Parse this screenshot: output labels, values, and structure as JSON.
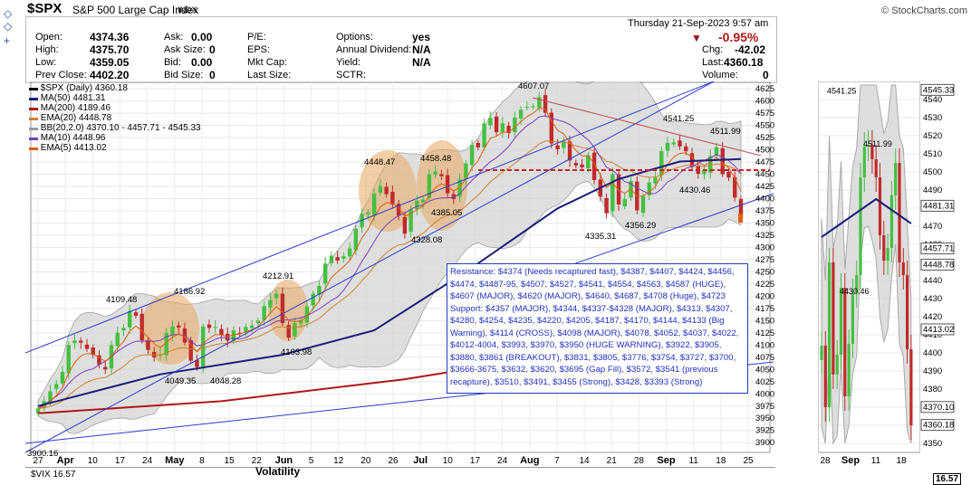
{
  "header": {
    "symbol": "$SPX",
    "name": "S&P 500 Large Cap Index",
    "exchange": "INDX",
    "logo": "© StockCharts.com",
    "datetime": "Thursday  21-Sep-2023  9:57 am",
    "change_pct": "-0.95%"
  },
  "quote": {
    "open_label": "Open:",
    "open": "4374.36",
    "high_label": "High:",
    "high": "4375.70",
    "low_label": "Low:",
    "low": "4359.05",
    "prev_label": "Prev Close:",
    "prev": "4402.20",
    "ask_label": "Ask:",
    "ask": "0.00",
    "asksize_label": "Ask Size:",
    "asksize": "0",
    "bid_label": "Bid:",
    "bid": "0.00",
    "bidsize_label": "Bid Size:",
    "bidsize": "0",
    "pe_label": "P/E:",
    "eps_label": "EPS:",
    "mktcap_label": "Mkt Cap:",
    "lastsize_label": "Last Size:",
    "options_label": "Options:",
    "options": "yes",
    "div_label": "Annual Dividend:",
    "div": "N/A",
    "yield_label": "Yield:",
    "yield": "N/A",
    "sctr_label": "SCTR:",
    "chg_label": "Chg:",
    "chg": "-42.02",
    "last_label": "Last:",
    "last": "4360.18",
    "volume_label": "Volume:",
    "volume": "0"
  },
  "legend": [
    {
      "text": "$SPX (Daily) 4360.18",
      "color": "#000000"
    },
    {
      "text": "MA(50) 4481.31",
      "color": "#1a1f7a"
    },
    {
      "text": "MA(200) 4189.46",
      "color": "#b01818"
    },
    {
      "text": "EMA(20) 4448.78",
      "color": "#d08030"
    },
    {
      "text": "BB(20,2.0) 4370.10 - 4457.71 - 4545.33",
      "color": "#888888"
    },
    {
      "text": "MA(10) 4448.96",
      "color": "#7a3fc0"
    },
    {
      "text": "EMA(5) 4413.02",
      "color": "#e06010"
    }
  ],
  "levels_text": "Resistance: $4374 (Needs recaptured fast), $4387, $4407, $4424, $4456, $4474, $4487-95, $4507, $4527, $4541, $4554, $4563, $4587 (HUGE), $4607 (MAJOR), $4620 (MAJOR), $4640, $4687, $4708 (Huge), $4723 Support: $4357 (MAJOR), $4344, $4337-$4328 (MAJOR), $4313, $4307, $4280, $4254, $4235, $4220, $4205, $4187, $4170, $4144, $4133 (Big Warning), $4114 (CROSS), $4098 (MAJOR), $4078, $4052, $4037, $4022, $4012-4004, $3993, $3970, $3950 (HUGE WARNING), $3922, $3905, $3880, $3861 (BREAKOUT), $3831, $3805, $3776, $3754, $3727, $3700, $3666-3675, $3632, $3620, $3695 (Gap Fill), $3572, $3541 (previous recapture), $3510, $3491, $3455 (Strong), $3428, $3393 (Strong)",
  "bottom": {
    "vix_label": "$VIX 16.57",
    "volatility_label": "Volatility",
    "side_value": "16.57"
  },
  "chart_data": [
    {
      "type": "candlestick",
      "title": "$SPX (Daily) 4360.18",
      "ylim": [
        3880,
        4640
      ],
      "y_ticks": [
        3900,
        3925,
        3950,
        3975,
        4000,
        4025,
        4050,
        4075,
        4100,
        4125,
        4150,
        4175,
        4200,
        4225,
        4250,
        4275,
        4300,
        4325,
        4350,
        4375,
        4400,
        4425,
        4450,
        4475,
        4500,
        4525,
        4550,
        4575,
        4600,
        4625
      ],
      "x_tick_labels": [
        "27",
        "Apr",
        "10",
        "17",
        "24",
        "May",
        "8",
        "15",
        "22",
        "Jun",
        "5",
        "12",
        "20",
        "26",
        "Jul",
        "10",
        "17",
        "24",
        "Aug",
        "7",
        "14",
        "21",
        "28",
        "Sep",
        "11",
        "18",
        "25"
      ],
      "x_tick_bold": [
        "Apr",
        "May",
        "Jun",
        "Jul",
        "Aug",
        "Sep"
      ],
      "annotations": [
        {
          "text": "3900.16",
          "value": 3900.16
        },
        {
          "text": "4109.48",
          "value": 4109.48
        },
        {
          "text": "4186.92",
          "value": 4186.92
        },
        {
          "text": "4049.35",
          "value": 4049.35
        },
        {
          "text": "4048.28",
          "value": 4048.28
        },
        {
          "text": "4212.91",
          "value": 4212.91
        },
        {
          "text": "4103.98",
          "value": 4103.98
        },
        {
          "text": "4448.47",
          "value": 4448.47
        },
        {
          "text": "4458.48",
          "value": 4458.48
        },
        {
          "text": "4328.08",
          "value": 4328.08
        },
        {
          "text": "4385.05",
          "value": 4385.05
        },
        {
          "text": "4607.07",
          "value": 4607.07
        },
        {
          "text": "4541.25",
          "value": 4541.25
        },
        {
          "text": "4511.99",
          "value": 4511.99
        },
        {
          "text": "4430.46",
          "value": 4430.46
        },
        {
          "text": "4356.29",
          "value": 4356.29
        },
        {
          "text": "4335.31",
          "value": 4335.31
        }
      ],
      "close": [
        3970,
        3985,
        4005,
        4020,
        4045,
        4100,
        4109,
        4105,
        4092,
        4080,
        4060,
        4050,
        4100,
        4125,
        4135,
        4170,
        4160,
        4110,
        4090,
        4075,
        4080,
        4125,
        4138,
        4136,
        4105,
        4068,
        4055,
        4138,
        4135,
        4137,
        4120,
        4109,
        4130,
        4124,
        4137,
        4140,
        4150,
        4180,
        4192,
        4205,
        4145,
        4115,
        4145,
        4151,
        4179,
        4205,
        4221,
        4267,
        4283,
        4273,
        4282,
        4298,
        4338,
        4369,
        4372,
        4410,
        4426,
        4409,
        4388,
        4365,
        4328,
        4378,
        4396,
        4398,
        4450,
        4455,
        4446,
        4411,
        4399,
        4439,
        4472,
        4510,
        4505,
        4554,
        4565,
        4536,
        4554,
        4534,
        4566,
        4582,
        4588,
        4589,
        4608,
        4576,
        4513,
        4501,
        4518,
        4478,
        4468,
        4464,
        4489,
        4438,
        4404,
        4370,
        4450,
        4388,
        4399,
        4436,
        4376,
        4405,
        4433,
        4443,
        4497,
        4514,
        4515,
        4507,
        4497,
        4465,
        4451,
        4458,
        4487,
        4505,
        4450,
        4443,
        4402,
        4360
      ],
      "series": [
        {
          "name": "MA(200)",
          "color": "#b01818",
          "points": [
            [
              0,
              3960
            ],
            [
              30,
              3985
            ],
            [
              60,
              4030
            ],
            [
              90,
              4090
            ],
            [
              115,
              4189
            ]
          ]
        },
        {
          "name": "MA(50)",
          "color": "#1a1f7a",
          "points": [
            [
              0,
              3975
            ],
            [
              20,
              4040
            ],
            [
              40,
              4080
            ],
            [
              55,
              4130
            ],
            [
              70,
              4250
            ],
            [
              85,
              4380
            ],
            [
              95,
              4440
            ],
            [
              105,
              4476
            ],
            [
              115,
              4481
            ]
          ]
        }
      ]
    },
    {
      "type": "candlestick",
      "title": "",
      "ylim": [
        4345,
        4550
      ],
      "y_ticks": [
        4350,
        4360,
        4370,
        4380,
        4390,
        4400,
        4410,
        4420,
        4430,
        4440,
        4450,
        4460,
        4470,
        4480,
        4490,
        4500,
        4510,
        4520,
        4530,
        4540
      ],
      "x_tick_labels": [
        "28",
        "Sep",
        "11",
        "18"
      ],
      "annotations": [
        {
          "text": "4541.25",
          "value": 4541.25
        },
        {
          "text": "4511.99",
          "value": 4511.99
        },
        {
          "text": "4430.46",
          "value": 4430.46
        }
      ],
      "right_labels": [
        {
          "text": "4545.33",
          "value": 4545.33
        },
        {
          "text": "4481.31",
          "value": 4481.31
        },
        {
          "text": "4457.71",
          "value": 4457.71
        },
        {
          "text": "4448.78",
          "value": 4448.78
        },
        {
          "text": "4413.02",
          "value": 4413.02
        },
        {
          "text": "4370.10",
          "value": 4370.1
        },
        {
          "text": "4360.18",
          "value": 4360.18
        }
      ]
    }
  ]
}
